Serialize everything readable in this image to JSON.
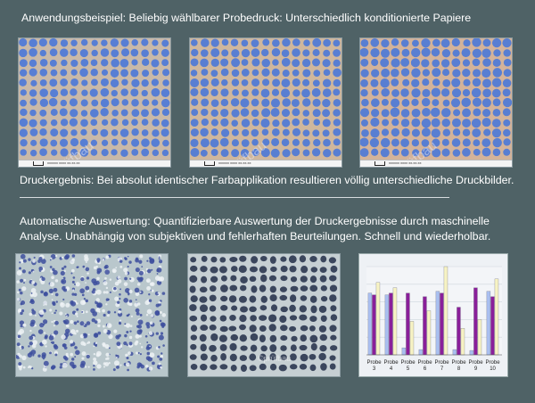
{
  "heading_top": "Anwendungsbeispiel: Beliebig wählbarer Probedruck: Unterschiedlich konditionierte Papiere",
  "result_text": "Druckergebnis: Bei absolut identischer Farbapplikation resultieren völlig unterschiedliche Druckbilder.",
  "analysis_text": {
    "line1": "Automatische Auswertung: Quantifizierbare Auswertung der Druckergebnisse durch maschinelle",
    "line2": "Analyse. Unabhängig von subjektiven und fehlerhaften Beurteilungen. Schnell und wiederholbar."
  },
  "watermark": "©prüfbau",
  "colors": {
    "background": "#4f6266",
    "dot_blue": "#4a78d8",
    "bar_blue": "#a9bff0",
    "bar_purple": "#8a1f9a",
    "bar_cream": "#f7f3c4"
  },
  "chart_data": {
    "type": "bar",
    "title": "",
    "categories": [
      "Probe 3",
      "Probe 4",
      "Probe 5",
      "Probe 6",
      "Probe 7",
      "Probe 8",
      "Probe 9",
      "Probe 10"
    ],
    "series": [
      {
        "values": [
          70,
          68,
          8,
          6,
          72,
          6,
          5,
          72
        ]
      },
      {
        "values": [
          68,
          70,
          70,
          66,
          70,
          54,
          76,
          66
        ]
      },
      {
        "values": [
          82,
          76,
          38,
          50,
          100,
          30,
          40,
          86
        ]
      }
    ],
    "ylim": [
      0,
      100
    ],
    "grid": true,
    "legend": "none"
  }
}
